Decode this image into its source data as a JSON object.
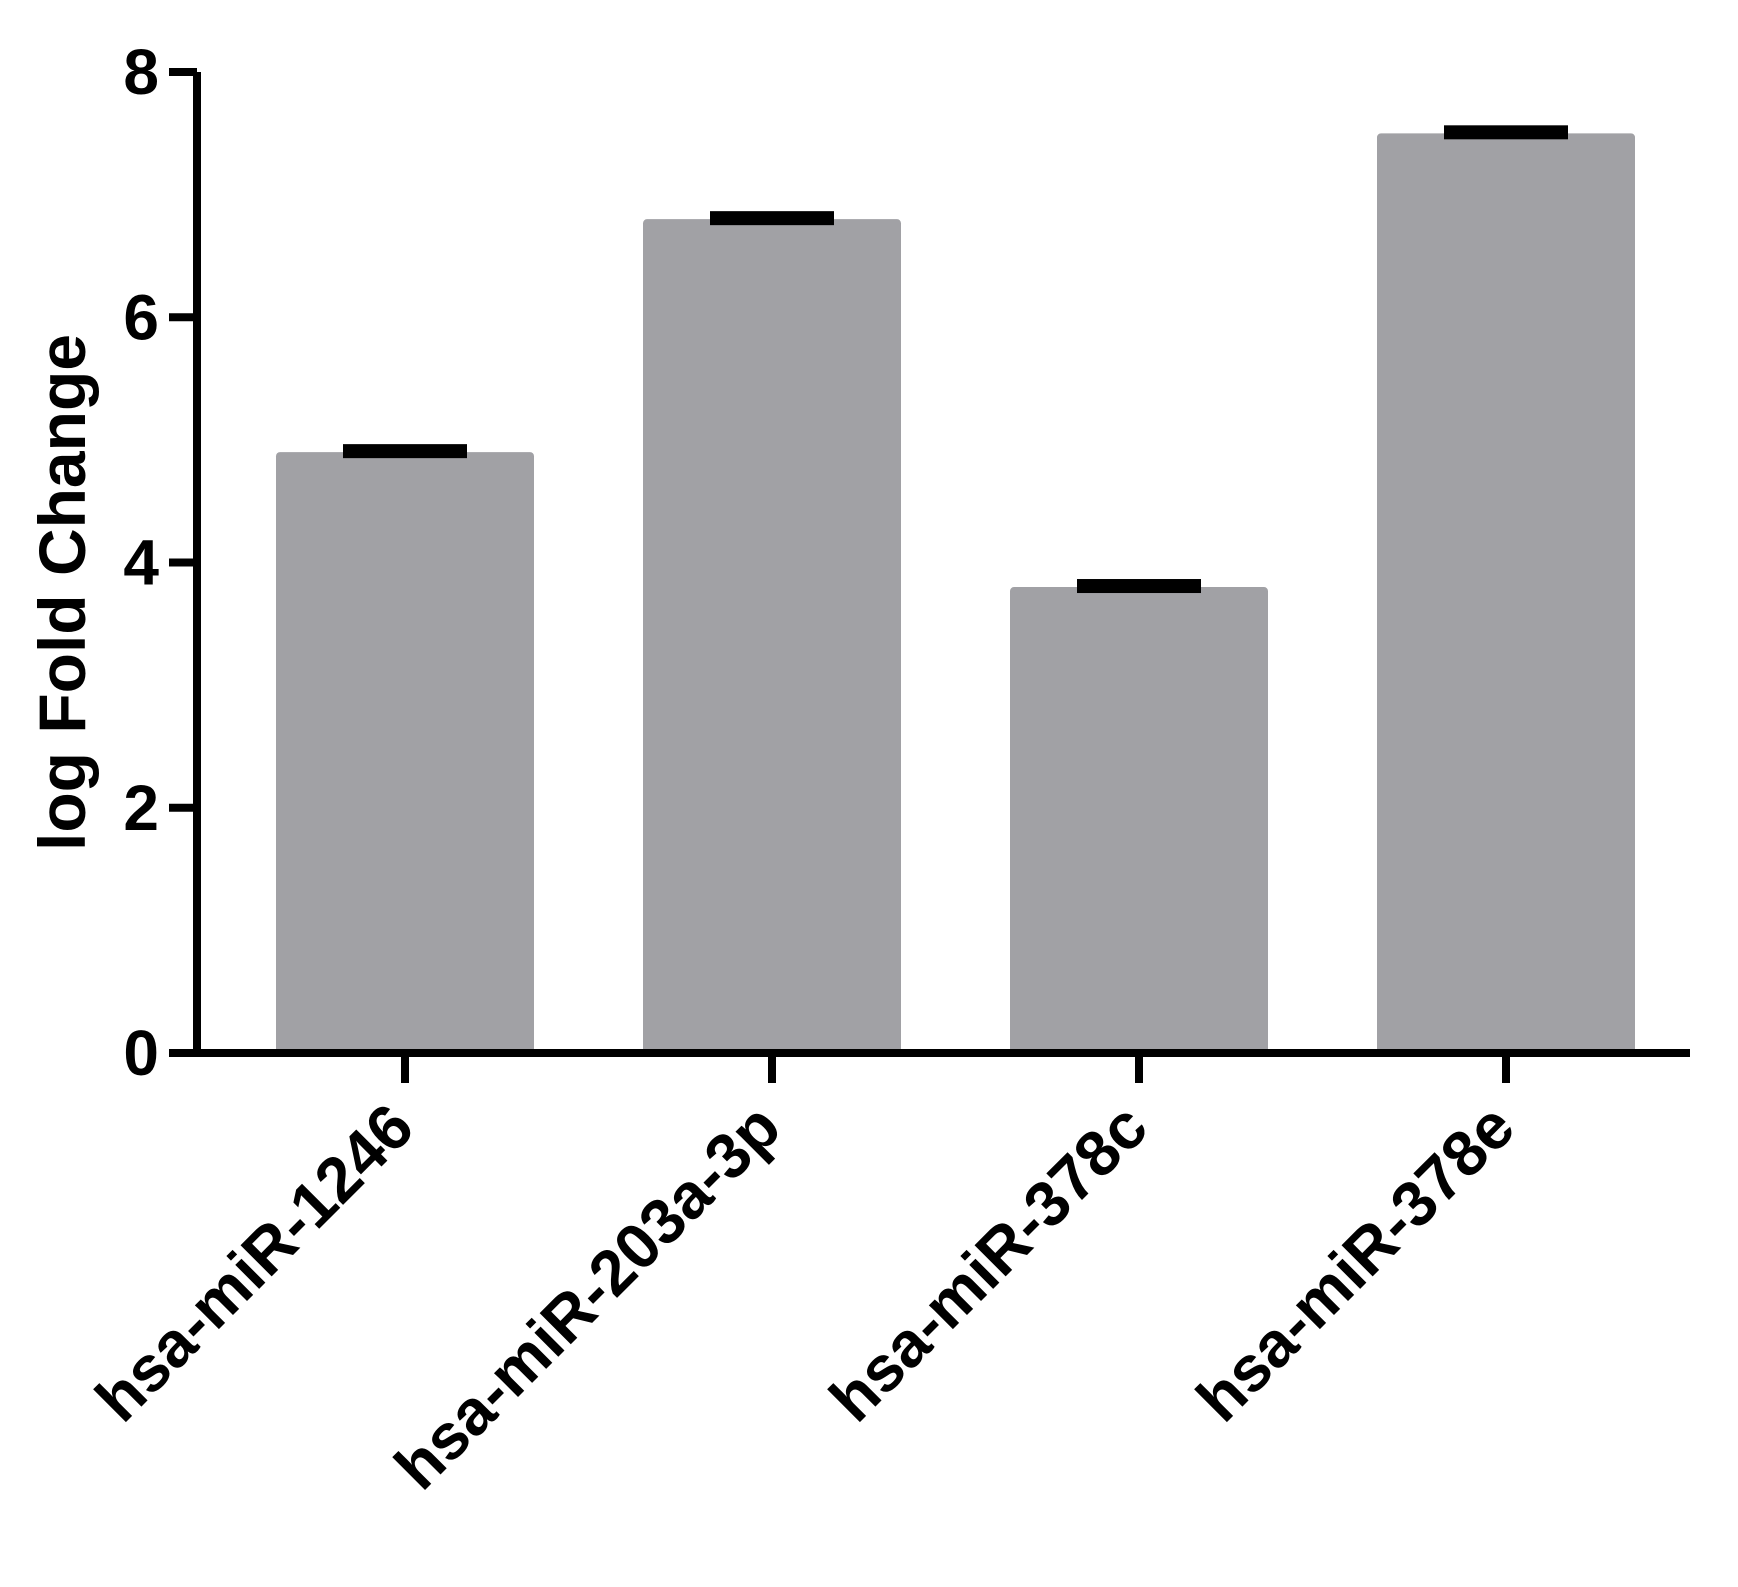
{
  "chart_data": {
    "type": "bar",
    "categories": [
      "hsa-miR-1246",
      "hsa-miR-203a-3p",
      "hsa-miR-378c",
      "hsa-miR-378e"
    ],
    "values": [
      4.9,
      6.8,
      3.8,
      7.5
    ],
    "error": [
      0.05,
      0.05,
      0.05,
      0.05
    ],
    "xlabel": "",
    "ylabel": "log Fold Change",
    "ylim": [
      0,
      8
    ],
    "yticks": [
      0,
      2,
      4,
      6,
      8
    ],
    "ytick_labels": [
      "0",
      "2",
      "4",
      "6",
      "8"
    ],
    "grid": false,
    "legend": "none",
    "colors": {
      "bar": "#a1a1a5",
      "axis": "#000000",
      "error_bar": "#000000"
    }
  }
}
